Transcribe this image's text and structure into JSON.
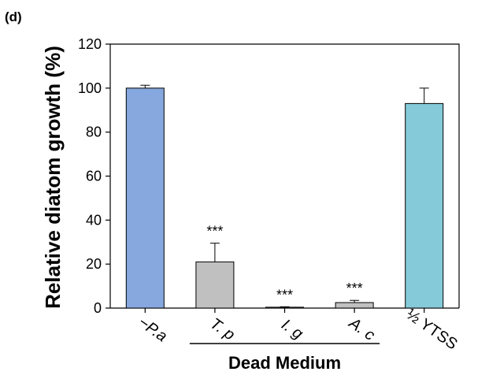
{
  "panel_label": "(d)",
  "chart_data": {
    "type": "bar",
    "ylabel": "Relative diatom growth (%)",
    "ylim": [
      0,
      120
    ],
    "yticks": [
      0,
      20,
      40,
      60,
      80,
      100,
      120
    ],
    "grid": false,
    "bars": [
      {
        "label": "−P.a",
        "value": 100,
        "error": 1.3,
        "color": "#86a8df",
        "italic": true,
        "significance": ""
      },
      {
        "label": "T. p",
        "value": 21,
        "error": 8.5,
        "color": "#c0c0c0",
        "italic": true,
        "significance": "***"
      },
      {
        "label": "I. g",
        "value": 0.4,
        "error": 0.2,
        "color": "#c0c0c0",
        "italic": true,
        "significance": "***"
      },
      {
        "label": "A. c",
        "value": 2.5,
        "error": 1.0,
        "color": "#c0c0c0",
        "italic": true,
        "significance": "***"
      },
      {
        "label": "½ YTSS",
        "value": 93,
        "error": 7,
        "color": "#84cad8",
        "italic": false,
        "significance": ""
      }
    ],
    "group": {
      "label": "Dead Medium",
      "from": 1,
      "to": 3
    }
  }
}
